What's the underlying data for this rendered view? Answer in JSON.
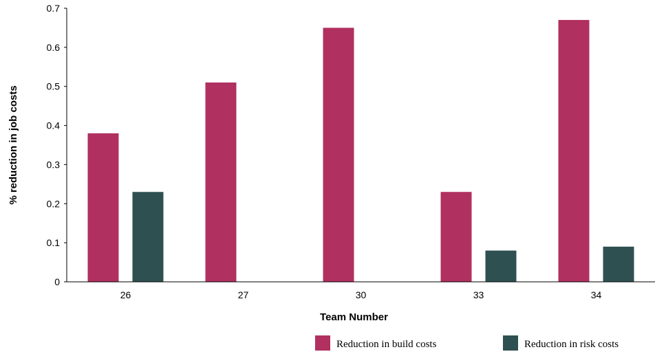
{
  "chart_data": {
    "type": "bar",
    "categories": [
      "26",
      "27",
      "30",
      "33",
      "34"
    ],
    "series": [
      {
        "name": "Reduction in build costs",
        "color": "#b03060",
        "values": [
          0.38,
          0.51,
          0.65,
          0.23,
          0.67
        ]
      },
      {
        "name": "Reduction in risk costs",
        "color": "#2f5050",
        "values": [
          0.23,
          0,
          0,
          0.08,
          0.09
        ]
      }
    ],
    "xlabel": "Team Number",
    "ylabel": "% reduction in job costs",
    "ylim": [
      0,
      0.7
    ],
    "yticks": [
      "0",
      "0.1",
      "0.2",
      "0.3",
      "0.4",
      "0.5",
      "0.6",
      "0.7"
    ],
    "grid": false,
    "legend_position": "bottom-right"
  }
}
